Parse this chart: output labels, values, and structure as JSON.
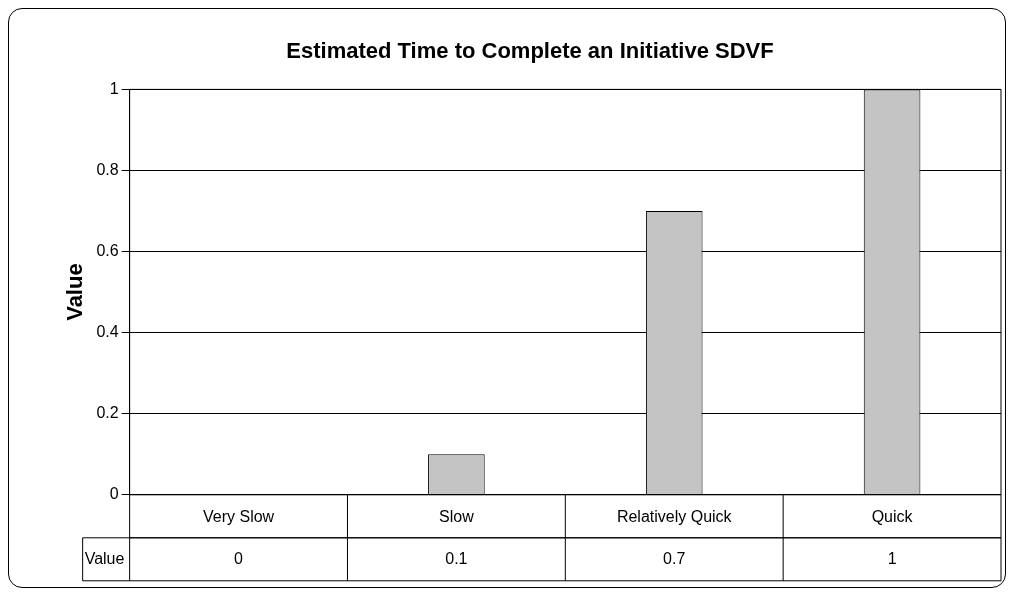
{
  "chart_data": {
    "type": "bar",
    "title": "Estimated Time to Complete an Initiative SDVF",
    "ylabel": "Value",
    "categories": [
      "Very Slow",
      "Slow",
      "Relatively Quick",
      "Quick"
    ],
    "series": [
      {
        "name": "Value",
        "color": "#c4c4c4",
        "values": [
          0,
          0.1,
          0.7,
          1
        ]
      }
    ],
    "ylim": [
      0,
      1
    ],
    "yticks": [
      0,
      0.2,
      0.4,
      0.6,
      0.8,
      1
    ],
    "grid": "y",
    "data_labels": true,
    "legend": false
  }
}
